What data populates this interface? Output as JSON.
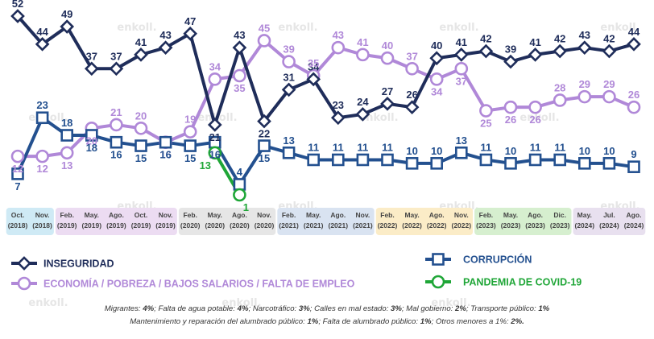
{
  "colors": {
    "inseguridad": "#1f2d5a",
    "economia": "#b088d8",
    "corrupcion": "#23508f",
    "covid": "#1fa637",
    "watermark": "#e4e4e4"
  },
  "watermark_text": "enkoll.",
  "chart_data": {
    "type": "line",
    "categories": [
      {
        "month": "Oct.",
        "year": "(2018)"
      },
      {
        "month": "Nov.",
        "year": "(2018)"
      },
      {
        "month": "Feb.",
        "year": "(2019)"
      },
      {
        "month": "May.",
        "year": "(2019)"
      },
      {
        "month": "Ago.",
        "year": "(2019)"
      },
      {
        "month": "Oct.",
        "year": "(2019)"
      },
      {
        "month": "Nov.",
        "year": "(2019)"
      },
      {
        "month": "Feb.",
        "year": "(2020)"
      },
      {
        "month": "May.",
        "year": "(2020)"
      },
      {
        "month": "Ago.",
        "year": "(2020)"
      },
      {
        "month": "Nov.",
        "year": "(2020)"
      },
      {
        "month": "Feb.",
        "year": "(2021)"
      },
      {
        "month": "May.",
        "year": "(2021)"
      },
      {
        "month": "Ago.",
        "year": "(2021)"
      },
      {
        "month": "Nov.",
        "year": "(2021)"
      },
      {
        "month": "Feb.",
        "year": "(2022)"
      },
      {
        "month": "May.",
        "year": "(2022)"
      },
      {
        "month": "Ago.",
        "year": "(2022)"
      },
      {
        "month": "Nov.",
        "year": "(2022)"
      },
      {
        "month": "Feb.",
        "year": "(2023)"
      },
      {
        "month": "May.",
        "year": "(2023)"
      },
      {
        "month": "Ago.",
        "year": "(2023)"
      },
      {
        "month": "Dic.",
        "year": "(2023)"
      },
      {
        "month": "May.",
        "year": "(2024)"
      },
      {
        "month": "Jul.",
        "year": "(2024)"
      },
      {
        "month": "Ago.",
        "year": "(2024)"
      }
    ],
    "year_bands": [
      {
        "from": 0,
        "to": 1,
        "color": "#cfeaf5"
      },
      {
        "from": 2,
        "to": 6,
        "color": "#ecdcf2"
      },
      {
        "from": 7,
        "to": 10,
        "color": "#e6e6e6"
      },
      {
        "from": 11,
        "to": 14,
        "color": "#d9e3f1"
      },
      {
        "from": 15,
        "to": 18,
        "color": "#fbecc7"
      },
      {
        "from": 19,
        "to": 22,
        "color": "#d6efcf"
      },
      {
        "from": 23,
        "to": 25,
        "color": "#e8e0ef"
      }
    ],
    "series": [
      {
        "key": "inseguridad",
        "name": "INSEGURIDAD",
        "marker": "diamond",
        "x": [
          0,
          1,
          2,
          3,
          4,
          5,
          6,
          7,
          8,
          9,
          10,
          11,
          12,
          13,
          14,
          15,
          16,
          17,
          18,
          19,
          20,
          21,
          22,
          23,
          24,
          25
        ],
        "values": [
          52,
          44,
          49,
          37,
          37,
          41,
          43,
          47,
          21,
          43,
          22,
          31,
          34,
          23,
          24,
          27,
          26,
          40,
          41,
          42,
          39,
          41,
          42,
          43,
          42,
          44
        ]
      },
      {
        "key": "economia",
        "name": "ECONOMÍA / POBREZA / BAJOS SALARIOS / FALTA DE EMPLEO",
        "marker": "circle",
        "x": [
          0,
          1,
          2,
          3,
          4,
          5,
          6,
          7,
          8,
          9,
          10,
          11,
          12,
          13,
          14,
          15,
          16,
          17,
          18,
          19,
          20,
          21,
          22,
          23,
          24,
          25
        ],
        "values": [
          12,
          12,
          13,
          20,
          21,
          20,
          16,
          19,
          34,
          35,
          45,
          39,
          35,
          43,
          41,
          40,
          37,
          34,
          37,
          25,
          26,
          26,
          28,
          29,
          29,
          26
        ]
      },
      {
        "key": "corrupcion",
        "name": "CORRUPCIÓN",
        "marker": "square",
        "x": [
          0,
          1,
          2,
          3,
          4,
          5,
          6,
          7,
          8,
          9,
          10,
          11,
          12,
          13,
          14,
          15,
          16,
          17,
          18,
          19,
          20,
          21,
          22,
          23,
          24,
          25
        ],
        "values": [
          7,
          23,
          18,
          18,
          16,
          15,
          16,
          15,
          16,
          4,
          15,
          13,
          11,
          11,
          11,
          11,
          10,
          10,
          13,
          11,
          10,
          11,
          11,
          10,
          10,
          9
        ]
      },
      {
        "key": "covid",
        "name": "PANDEMIA DE COVID-19",
        "marker": "circle",
        "x": [
          8,
          9
        ],
        "values": [
          13,
          1
        ]
      }
    ]
  },
  "footnote": {
    "line1": [
      {
        "label": "Migrantes:",
        "value": "4%"
      },
      {
        "label": "Falta de agua potable:",
        "value": "4%"
      },
      {
        "label": "Narcotráfico:",
        "value": "3%"
      },
      {
        "label": "Calles en mal estado:",
        "value": "3%"
      },
      {
        "label": "Mal gobierno:",
        "value": "2%"
      },
      {
        "label": "Transporte público:",
        "value": "1%"
      }
    ],
    "line2": [
      {
        "label": "Mantenimiento y reparación del alumbrado público:",
        "value": "1%"
      },
      {
        "label": "Falta de alumbrado público:",
        "value": "1%"
      },
      {
        "label": "Otros menores a 1%:",
        "value": "2%."
      }
    ]
  }
}
